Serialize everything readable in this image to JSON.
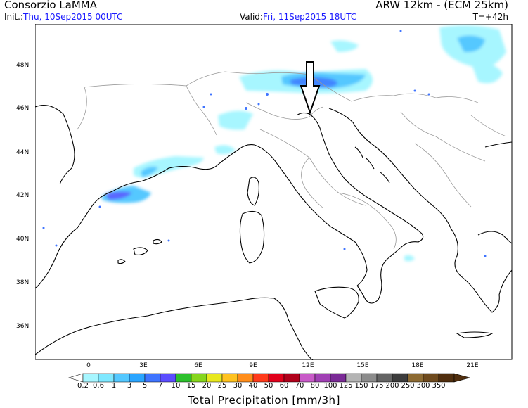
{
  "header": {
    "org": "Consorzio LaMMA",
    "model": "ARW 12km - (ECM 25km)",
    "init_label": "Init.:",
    "init_value": "Thu, 10Sep2015 00UTC",
    "valid_label": "Valid:",
    "valid_value": "Fri, 11Sep2015 18UTC",
    "tstep": "T=+42h"
  },
  "map": {
    "lat_labels": [
      "48N",
      "46N",
      "44N",
      "42N",
      "40N",
      "38N",
      "36N"
    ],
    "lon_labels": [
      "0",
      "3E",
      "6E",
      "9E",
      "12E",
      "15E",
      "18E",
      "21E"
    ],
    "coast_color": "#000000",
    "border_color": "#9a9a9a",
    "annotation": "arrow-down"
  },
  "legend": {
    "title": "Total Precipitation [mm/3h]",
    "ticks": [
      "0.2",
      "0.6",
      "1",
      "3",
      "5",
      "7",
      "10",
      "15",
      "20",
      "25",
      "30",
      "40",
      "50",
      "60",
      "70",
      "80",
      "100",
      "125",
      "150",
      "175",
      "200",
      "250",
      "300",
      "350"
    ],
    "colors": [
      "#a7f6ff",
      "#7fe8ff",
      "#54c8ff",
      "#2aa5ff",
      "#3f74ff",
      "#5b4dff",
      "#2cc02c",
      "#86d61d",
      "#e8e81e",
      "#ffc21f",
      "#ff8d1a",
      "#ff3a1a",
      "#e0001a",
      "#b0001a",
      "#c85ac8",
      "#a040b4",
      "#7a2a96",
      "#b4b4b4",
      "#8c8c8c",
      "#646464",
      "#3c3c3c",
      "#8c6a32",
      "#6e4a1e",
      "#502e0e"
    ]
  }
}
